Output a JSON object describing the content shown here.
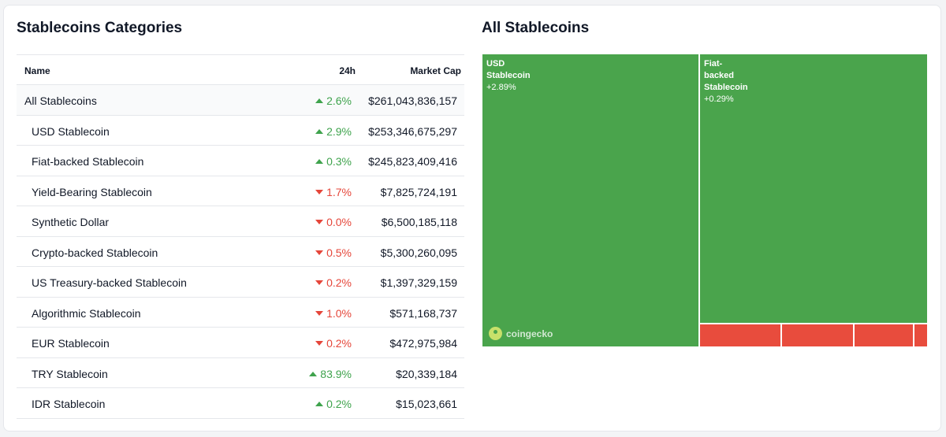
{
  "left_title": "Stablecoins Categories",
  "right_title": "All Stablecoins",
  "table": {
    "headers": {
      "name": "Name",
      "change": "24h",
      "mcap": "Market Cap"
    },
    "rows": [
      {
        "name": "All Stablecoins",
        "change": "2.6%",
        "dir": "up",
        "mcap": "$261,043,836,157"
      },
      {
        "name": "USD Stablecoin",
        "change": "2.9%",
        "dir": "up",
        "mcap": "$253,346,675,297"
      },
      {
        "name": "Fiat-backed Stablecoin",
        "change": "0.3%",
        "dir": "up",
        "mcap": "$245,823,409,416"
      },
      {
        "name": "Yield-Bearing Stablecoin",
        "change": "1.7%",
        "dir": "down",
        "mcap": "$7,825,724,191"
      },
      {
        "name": "Synthetic Dollar",
        "change": "0.0%",
        "dir": "down",
        "mcap": "$6,500,185,118"
      },
      {
        "name": "Crypto-backed Stablecoin",
        "change": "0.5%",
        "dir": "down",
        "mcap": "$5,300,260,095"
      },
      {
        "name": "US Treasury-backed Stablecoin",
        "change": "0.2%",
        "dir": "down",
        "mcap": "$1,397,329,159"
      },
      {
        "name": "Algorithmic Stablecoin",
        "change": "1.0%",
        "dir": "down",
        "mcap": "$571,168,737"
      },
      {
        "name": "EUR Stablecoin",
        "change": "0.2%",
        "dir": "down",
        "mcap": "$472,975,984"
      },
      {
        "name": "TRY Stablecoin",
        "change": "83.9%",
        "dir": "up",
        "mcap": "$20,339,184"
      },
      {
        "name": "IDR Stablecoin",
        "change": "0.2%",
        "dir": "up",
        "mcap": "$15,023,661"
      }
    ]
  },
  "treemap": {
    "tiles": [
      {
        "line1": "USD",
        "line2": "Stablecoin",
        "change": "+2.89%",
        "color": "#4aa44c"
      },
      {
        "line1": "Fiat-",
        "line2": "backed",
        "line3": "Stablecoin",
        "change": "+0.29%",
        "color": "#4aa44c"
      }
    ],
    "watermark": "coingecko",
    "colors": {
      "up": "#4aa44c",
      "down": "#e84c3d"
    }
  }
}
